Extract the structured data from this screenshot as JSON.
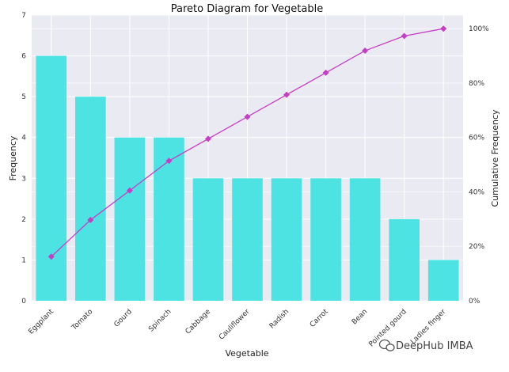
{
  "chart_data": {
    "type": "bar",
    "title": "Pareto Diagram for Vegetable",
    "xlabel": "Vegetable",
    "ylabel": "Frequency",
    "y2label": "Cumulative Frequency",
    "categories": [
      "Eggplant",
      "Tomato",
      "Gourd",
      "Spinach",
      "Cabbage",
      "Cauliflower",
      "Radish",
      "Carrot",
      "Bean",
      "Pointed gourd",
      "Ladies finger"
    ],
    "series": [
      {
        "name": "Frequency",
        "type": "bar",
        "axis": "left",
        "values": [
          6,
          5,
          4,
          4,
          3,
          3,
          3,
          3,
          3,
          2,
          1
        ],
        "color": "#4de3e3"
      },
      {
        "name": "Cumulative Frequency",
        "type": "line",
        "axis": "right",
        "values": [
          16.2,
          29.7,
          40.5,
          51.4,
          59.5,
          67.6,
          75.7,
          83.8,
          91.9,
          97.3,
          100.0
        ],
        "color": "#c43fc4"
      }
    ],
    "ylim": [
      0,
      7
    ],
    "y2lim": [
      0,
      105
    ],
    "yticks": [
      0,
      1,
      2,
      3,
      4,
      5,
      6,
      7
    ],
    "y2ticks": [
      "0%",
      "20%",
      "40%",
      "60%",
      "80%",
      "100%"
    ],
    "y2tick_values": [
      0,
      20,
      40,
      60,
      80,
      100
    ],
    "grid": true,
    "plot_background": "#eaeaf2"
  },
  "watermark": {
    "text": "DeepHub IMBA",
    "icon": "wechat-icon"
  }
}
